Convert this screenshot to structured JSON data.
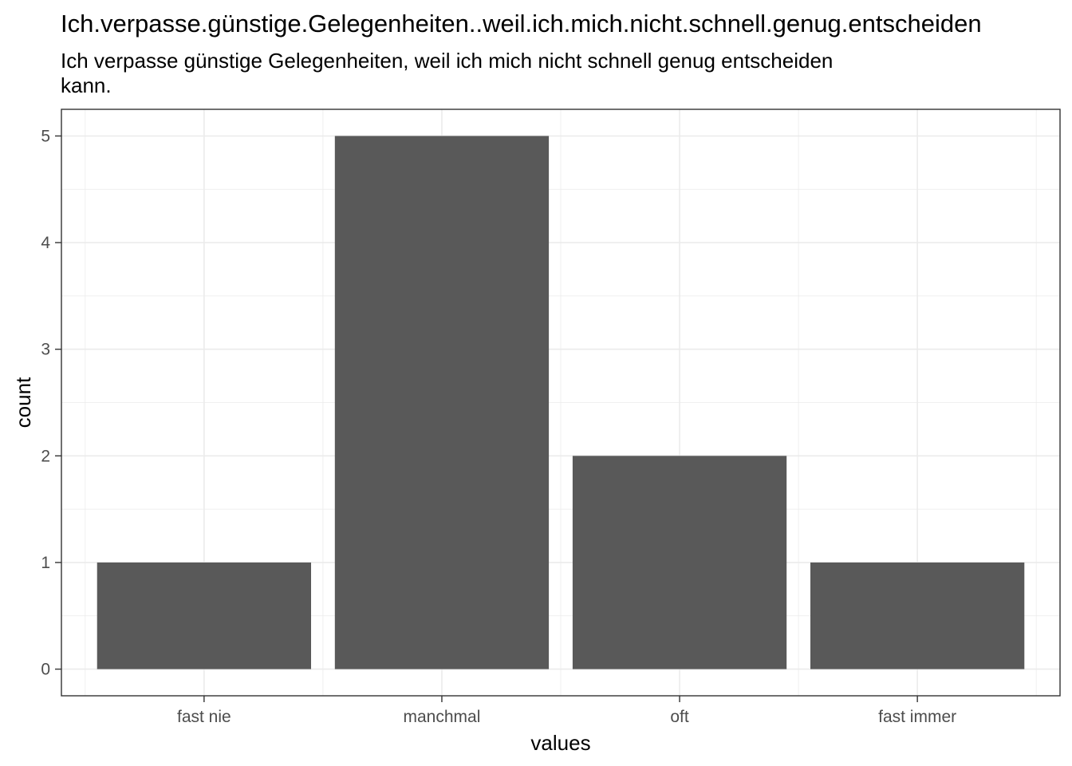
{
  "chart_data": {
    "type": "bar",
    "title": "Ich.verpasse.günstige.Gelegenheiten..weil.ich.mich.nicht.schnell.genug.entscheiden",
    "subtitle": "Ich verpasse günstige Gelegenheiten, weil ich mich nicht schnell genug entscheiden kann.",
    "categories": [
      "fast nie",
      "manchmal",
      "oft",
      "fast immer"
    ],
    "values": [
      1,
      5,
      2,
      1
    ],
    "xlabel": "values",
    "ylabel": "count",
    "ylim": [
      -0.25,
      5.25
    ],
    "yticks": [
      0,
      1,
      2,
      3,
      4,
      5
    ],
    "grid": true,
    "bar_color": "#595959",
    "grid_color": "#ebebeb",
    "panel_border_color": "#333333"
  }
}
